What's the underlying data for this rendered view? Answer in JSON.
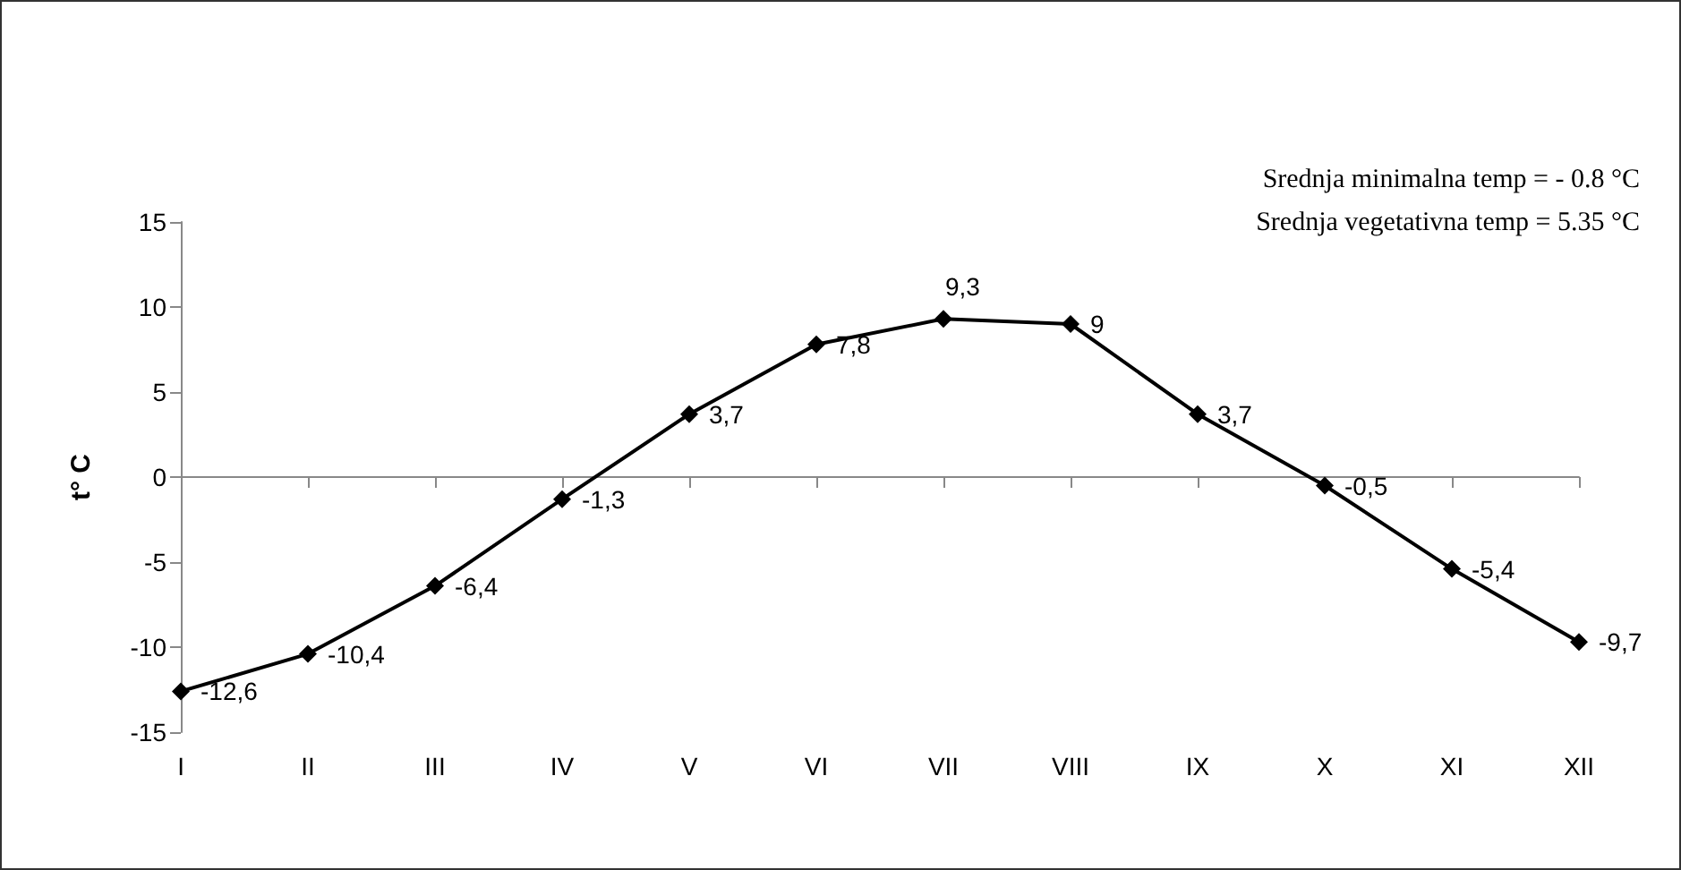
{
  "chart_data": {
    "type": "line",
    "ylabel": "t° C",
    "categories": [
      "I",
      "II",
      "III",
      "IV",
      "V",
      "VI",
      "VII",
      "VIII",
      "IX",
      "X",
      "XI",
      "XII"
    ],
    "series": [
      {
        "color": "#000000",
        "values": [
          -12.6,
          -10.4,
          -6.4,
          -1.3,
          3.7,
          7.8,
          9.3,
          9,
          3.7,
          -0.5,
          -5.4,
          -9.7
        ],
        "value_labels": [
          "-12,6",
          "-10,4",
          "-6,4",
          "-1,3",
          "3,7",
          "7,8",
          "9,3",
          "9",
          "3,7",
          "-0,5",
          "-5,4",
          "-9,7"
        ]
      }
    ],
    "ylim": [
      -15,
      15
    ],
    "yticks": [
      -15,
      -10,
      -5,
      0,
      5,
      10,
      15
    ],
    "annotations": [
      "Srednja minimalna temp = - 0.8 °C",
      "Srednja vegetativna temp = 5.35 °C"
    ],
    "marker": "diamond",
    "line_style": "solid"
  }
}
